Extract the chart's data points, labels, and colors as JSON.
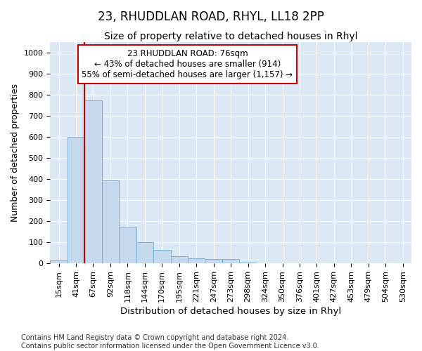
{
  "title": "23, RHUDDLAN ROAD, RHYL, LL18 2PP",
  "subtitle": "Size of property relative to detached houses in Rhyl",
  "xlabel": "Distribution of detached houses by size in Rhyl",
  "ylabel": "Number of detached properties",
  "bar_labels": [
    "15sqm",
    "41sqm",
    "67sqm",
    "92sqm",
    "118sqm",
    "144sqm",
    "170sqm",
    "195sqm",
    "221sqm",
    "247sqm",
    "273sqm",
    "298sqm",
    "324sqm",
    "350sqm",
    "376sqm",
    "401sqm",
    "427sqm",
    "453sqm",
    "479sqm",
    "504sqm",
    "530sqm"
  ],
  "bar_values": [
    15,
    600,
    775,
    395,
    175,
    100,
    65,
    35,
    25,
    20,
    22,
    5,
    0,
    0,
    0,
    0,
    0,
    0,
    0,
    0,
    0
  ],
  "bar_color": "#c5d9ee",
  "bar_edgecolor": "#7aafd4",
  "vline_x_idx": 2,
  "vline_color": "#cc0000",
  "annotation_text": "23 RHUDDLAN ROAD: 76sqm\n← 43% of detached houses are smaller (914)\n55% of semi-detached houses are larger (1,157) →",
  "annotation_box_facecolor": "#ffffff",
  "annotation_box_edgecolor": "#cc0000",
  "ylim": [
    0,
    1050
  ],
  "yticks": [
    0,
    100,
    200,
    300,
    400,
    500,
    600,
    700,
    800,
    900,
    1000
  ],
  "plot_bg_color": "#dce9f5",
  "grid_color": "#ffffff",
  "footer_text": "Contains HM Land Registry data © Crown copyright and database right 2024.\nContains public sector information licensed under the Open Government Licence v3.0.",
  "title_fontsize": 12,
  "subtitle_fontsize": 10,
  "xlabel_fontsize": 9.5,
  "ylabel_fontsize": 9,
  "tick_fontsize": 8,
  "annotation_fontsize": 8.5,
  "footer_fontsize": 7
}
